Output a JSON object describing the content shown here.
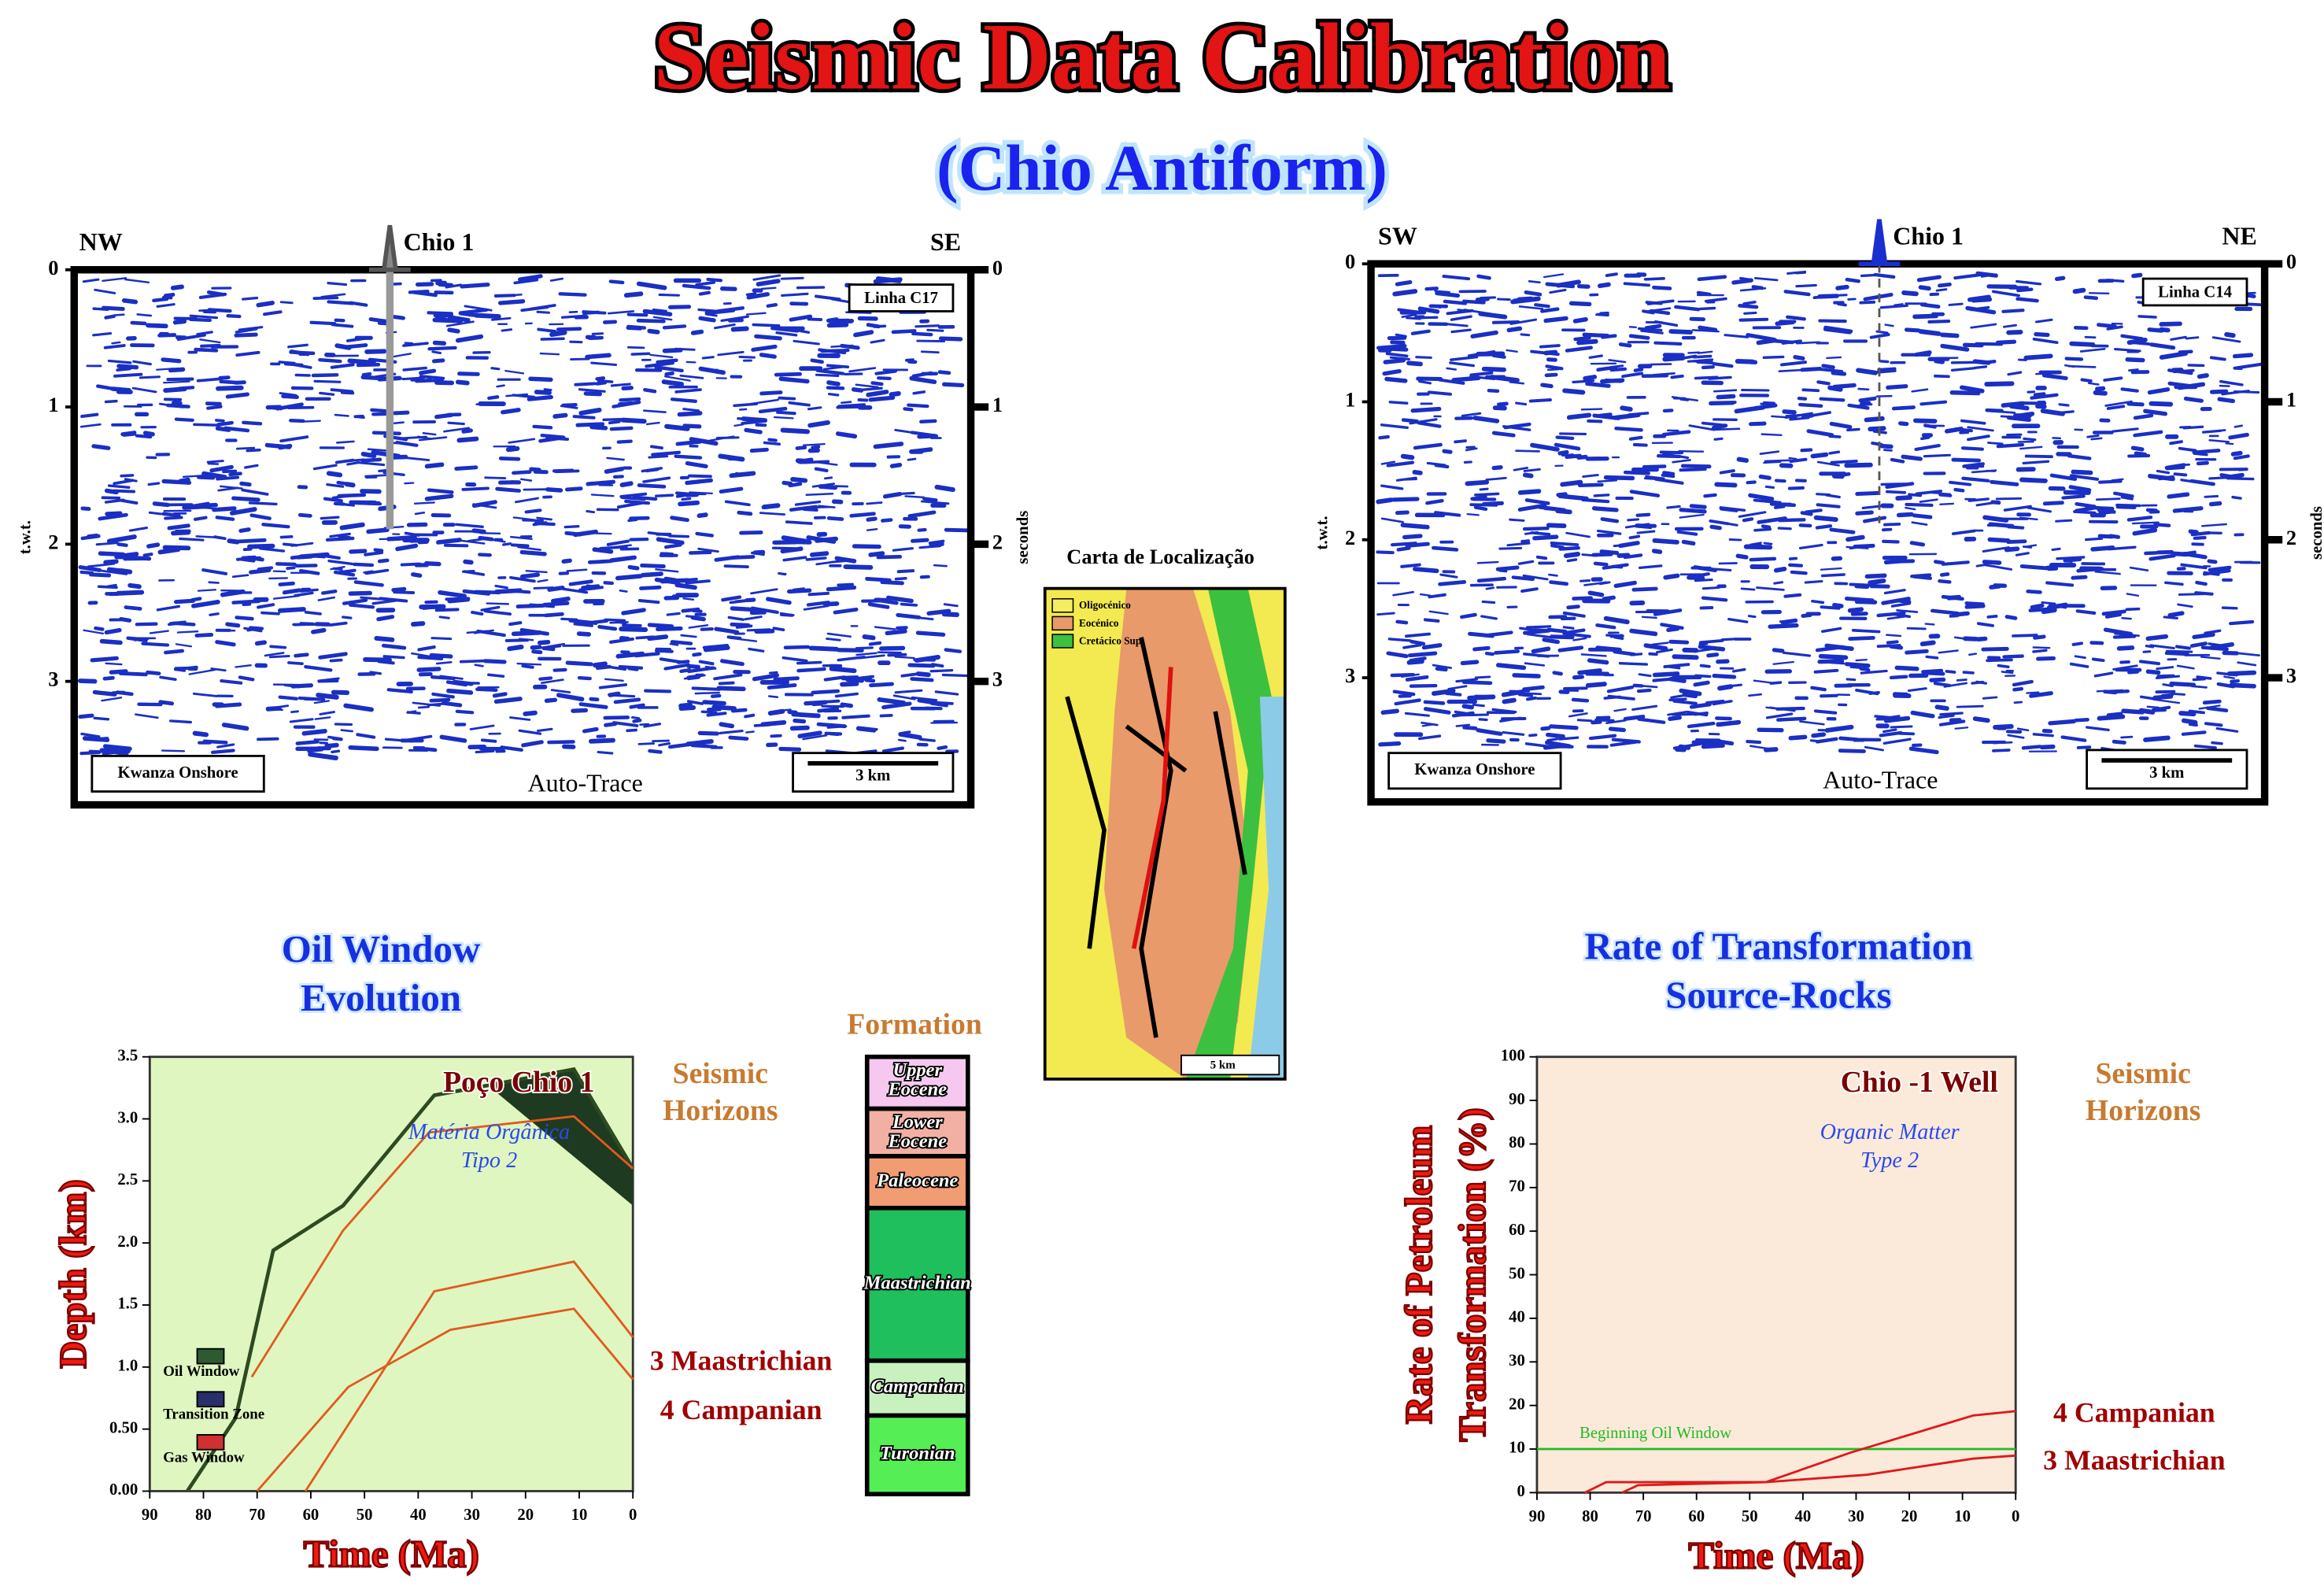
{
  "title": "Seismic Data Calibration",
  "subtitle": "(Chio Antiform)",
  "seismic_left": {
    "left_dir": "NW",
    "right_dir": "SE",
    "well": "Chio 1",
    "line": "Linha C17",
    "area": "Kwanza Onshore",
    "processing": "Auto-Trace",
    "scale": "3 km",
    "left_axis_label": "t.w.t.",
    "right_axis_label": "seconds",
    "ylim": [
      0,
      3.9
    ],
    "left_ticks": [
      0,
      1,
      2,
      3
    ],
    "right_ticks": [
      0,
      1,
      2,
      3
    ]
  },
  "seismic_right": {
    "left_dir": "SW",
    "right_dir": "NE",
    "well": "Chio 1",
    "line": "Linha C14",
    "area": "Kwanza Onshore",
    "processing": "Auto-Trace",
    "scale": "3 km",
    "left_axis_label": "t.w.t.",
    "right_axis_label": "seconds",
    "ylim": [
      0,
      3.9
    ],
    "left_ticks": [
      0,
      1,
      2,
      3
    ],
    "right_ticks": [
      0,
      1,
      2,
      3
    ]
  },
  "location_map": {
    "title": "Carta de Localização",
    "legend": [
      {
        "label": "Oligocénico",
        "color": "#f4ee60"
      },
      {
        "label": "Eocénico",
        "color": "#e89a6a"
      },
      {
        "label": "Cretácico Sup.",
        "color": "#3cc040"
      }
    ],
    "scale": "5 km"
  },
  "oil_window_chart": {
    "type": "line",
    "title": [
      "Oil Window",
      "Evolution"
    ],
    "well": "Poço Chio 1",
    "note": [
      "Matéria Orgânica",
      "Tipo 2"
    ],
    "y_label": "Depth (km)",
    "x_label": "Time (Ma)",
    "xlim": [
      90,
      0
    ],
    "ylim": [
      0,
      3.5
    ],
    "yticks": [
      {
        "value": 0,
        "label": "0.00"
      },
      {
        "value": 0.5,
        "label": "0.50"
      },
      {
        "value": 1,
        "label": "1.0"
      },
      {
        "value": 1.5,
        "label": "1.5"
      },
      {
        "value": 2,
        "label": "2.0"
      },
      {
        "value": 2.5,
        "label": "2.5"
      },
      {
        "value": 3,
        "label": "3.0"
      },
      {
        "value": 3.5,
        "label": "3.5"
      }
    ],
    "xticks": [
      90,
      80,
      70,
      60,
      50,
      40,
      30,
      20,
      10,
      0
    ],
    "series": [
      {
        "color": "#2d4a20",
        "x": [
          83,
          74,
          67,
          54,
          37,
          27,
          11,
          0
        ],
        "values": [
          0,
          0.59,
          1.94,
          2.3,
          3.19,
          3.27,
          3.4,
          2.6
        ]
      },
      {
        "color": "#e05a20",
        "x": [
          70,
          53,
          34,
          11,
          0
        ],
        "values": [
          0,
          0.84,
          1.3,
          1.47,
          0.9
        ]
      },
      {
        "color": "#e05a20",
        "x": [
          61,
          37,
          11,
          0
        ],
        "values": [
          0,
          1.61,
          1.85,
          1.24
        ]
      },
      {
        "color": "#e05a20",
        "x": [
          71,
          54,
          38,
          11,
          0
        ],
        "values": [
          0.92,
          2.1,
          2.89,
          3.02,
          2.6
        ]
      }
    ],
    "legend": [
      {
        "label": "Oil Window",
        "color": "#2e5a30"
      },
      {
        "label": "Transition Zone",
        "color": "#2a2e6a"
      },
      {
        "label": "Gas Window",
        "color": "#d03030"
      }
    ],
    "horizons_title": [
      "Seismic",
      "Horizons"
    ],
    "horizons": [
      "3 Maastrichian",
      "4 Campanian"
    ]
  },
  "formation": {
    "title": "Formation",
    "units": [
      {
        "label": [
          "Upper",
          "Eocene"
        ],
        "color": "#f6c8f0"
      },
      {
        "label": [
          "Lower",
          "Eocene"
        ],
        "color": "#f2b0a4"
      },
      {
        "label": "Paleocene",
        "color": "#f29c74"
      },
      {
        "label": "Maastrichian",
        "color": "#1fbf5e"
      },
      {
        "label": "Campanian",
        "color": "#c9f1c0"
      },
      {
        "label": "Turonian",
        "color": "#55ee55"
      }
    ]
  },
  "transformation_chart": {
    "type": "line",
    "title": [
      "Rate of Transformation",
      "Source-Rocks"
    ],
    "well": "Chio -1 Well",
    "note": [
      "Organic Matter",
      "Type 2"
    ],
    "y_label": [
      "Rate of Petroleum",
      "Transformation (%)"
    ],
    "x_label": "Time (Ma)",
    "xlim": [
      90,
      0
    ],
    "ylim": [
      0,
      100
    ],
    "yticks": [
      0,
      10,
      20,
      30,
      40,
      50,
      60,
      70,
      80,
      90,
      100
    ],
    "xticks": [
      90,
      80,
      70,
      60,
      50,
      40,
      30,
      20,
      10,
      0
    ],
    "reference_line": {
      "label": "Beginning Oil Window",
      "value": 10,
      "color": "#22bb22"
    },
    "series": [
      {
        "name": "4 Campanian",
        "color": "#dd1a1a",
        "x": [
          81,
          77,
          47,
          31,
          8,
          0
        ],
        "values": [
          0,
          2.4,
          2.4,
          9.2,
          17.7,
          18.7
        ]
      },
      {
        "name": "3 Maastrichian",
        "color": "#dd1a1a",
        "x": [
          74,
          71,
          47,
          28,
          8,
          0
        ],
        "values": [
          0,
          1.7,
          2.4,
          4.1,
          7.8,
          8.5
        ]
      }
    ],
    "horizons_title": [
      "Seismic",
      "Horizons"
    ]
  }
}
